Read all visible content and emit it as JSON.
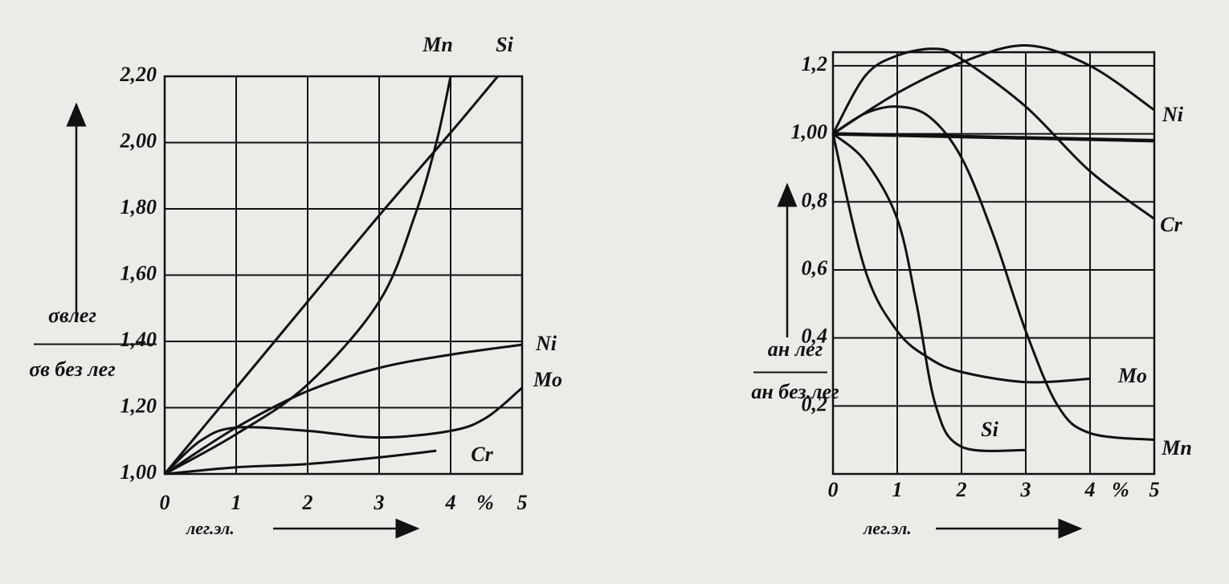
{
  "chart_data": [
    {
      "type": "line",
      "y_label_top": "σвлег",
      "y_label_bottom": "σв без лег",
      "x_label": "лег.эл.",
      "x_unit": "%",
      "xlim": [
        0,
        5
      ],
      "ylim": [
        1.0,
        2.2
      ],
      "xticks": [
        0,
        1,
        2,
        3,
        4,
        5
      ],
      "yticks": [
        {
          "value": 1.0,
          "label": "1,00"
        },
        {
          "value": 1.2,
          "label": "1,20"
        },
        {
          "value": 1.4,
          "label": "1,40"
        },
        {
          "value": 1.6,
          "label": "1,60"
        },
        {
          "value": 1.8,
          "label": "1,80"
        },
        {
          "value": 2.0,
          "label": "2,00"
        },
        {
          "value": 2.2,
          "label": "2,20"
        }
      ],
      "grid": true,
      "color": "#111111",
      "series": [
        {
          "name": "Mn",
          "x": [
            0,
            1,
            2,
            3,
            3.5,
            3.8,
            4.0
          ],
          "values": [
            1.0,
            1.12,
            1.27,
            1.52,
            1.78,
            2.0,
            2.2
          ]
        },
        {
          "name": "Si",
          "x": [
            0,
            1,
            2,
            3,
            4,
            4.66
          ],
          "values": [
            1.0,
            1.26,
            1.52,
            1.78,
            2.03,
            2.2
          ]
        },
        {
          "name": "Ni",
          "x": [
            0,
            1,
            2,
            3,
            4,
            5
          ],
          "values": [
            1.0,
            1.14,
            1.25,
            1.32,
            1.36,
            1.39
          ]
        },
        {
          "name": "Mo",
          "x": [
            0,
            0.5,
            1,
            2,
            3,
            4,
            4.5,
            5
          ],
          "values": [
            1.0,
            1.1,
            1.14,
            1.13,
            1.11,
            1.13,
            1.17,
            1.26
          ]
        },
        {
          "name": "Cr",
          "x": [
            0,
            1,
            2,
            3,
            3.8
          ],
          "values": [
            1.0,
            1.02,
            1.03,
            1.05,
            1.07
          ]
        }
      ]
    },
    {
      "type": "line",
      "y_label_top": "ан лег",
      "y_label_bottom": "ан без.лег",
      "x_label": "лег.эл.",
      "x_unit": "%",
      "xlim": [
        0,
        5
      ],
      "ylim": [
        0,
        1.24
      ],
      "xticks": [
        0,
        1,
        2,
        3,
        4,
        5
      ],
      "yticks": [
        {
          "value": 0.2,
          "label": "0,2"
        },
        {
          "value": 0.4,
          "label": "0,4"
        },
        {
          "value": 0.6,
          "label": "0,6"
        },
        {
          "value": 0.8,
          "label": "0,8"
        },
        {
          "value": 1.0,
          "label": "1,00"
        },
        {
          "value": 1.2,
          "label": "1,2"
        }
      ],
      "grid": true,
      "color": "#111111",
      "series": [
        {
          "name": "Ni",
          "x": [
            0,
            1,
            2,
            3,
            4,
            5
          ],
          "values": [
            1.0,
            1.12,
            1.21,
            1.26,
            1.2,
            1.07
          ]
        },
        {
          "name": "Cr",
          "x": [
            0,
            0.5,
            1,
            1.6,
            2,
            3,
            4,
            5
          ],
          "values": [
            1.0,
            1.17,
            1.23,
            1.25,
            1.22,
            1.08,
            0.89,
            0.75
          ]
        },
        {
          "name": "Mo",
          "x": [
            0,
            0.5,
            1,
            1.5,
            2,
            3,
            4
          ],
          "values": [
            1.0,
            0.6,
            0.42,
            0.34,
            0.3,
            0.27,
            0.28
          ]
        },
        {
          "name": "Si",
          "x": [
            0,
            0.5,
            1,
            1.3,
            1.6,
            2,
            3
          ],
          "values": [
            1.0,
            0.92,
            0.75,
            0.5,
            0.2,
            0.08,
            0.07
          ]
        },
        {
          "name": "Mn",
          "x": [
            0,
            0.5,
            1,
            1.5,
            2,
            2.5,
            3,
            3.5,
            4,
            5
          ],
          "values": [
            1.0,
            1.06,
            1.08,
            1.05,
            0.93,
            0.7,
            0.42,
            0.2,
            0.12,
            0.1
          ]
        },
        {
          "name": null,
          "x": [
            0,
            5
          ],
          "values": [
            1.0,
            0.98
          ]
        }
      ]
    }
  ]
}
